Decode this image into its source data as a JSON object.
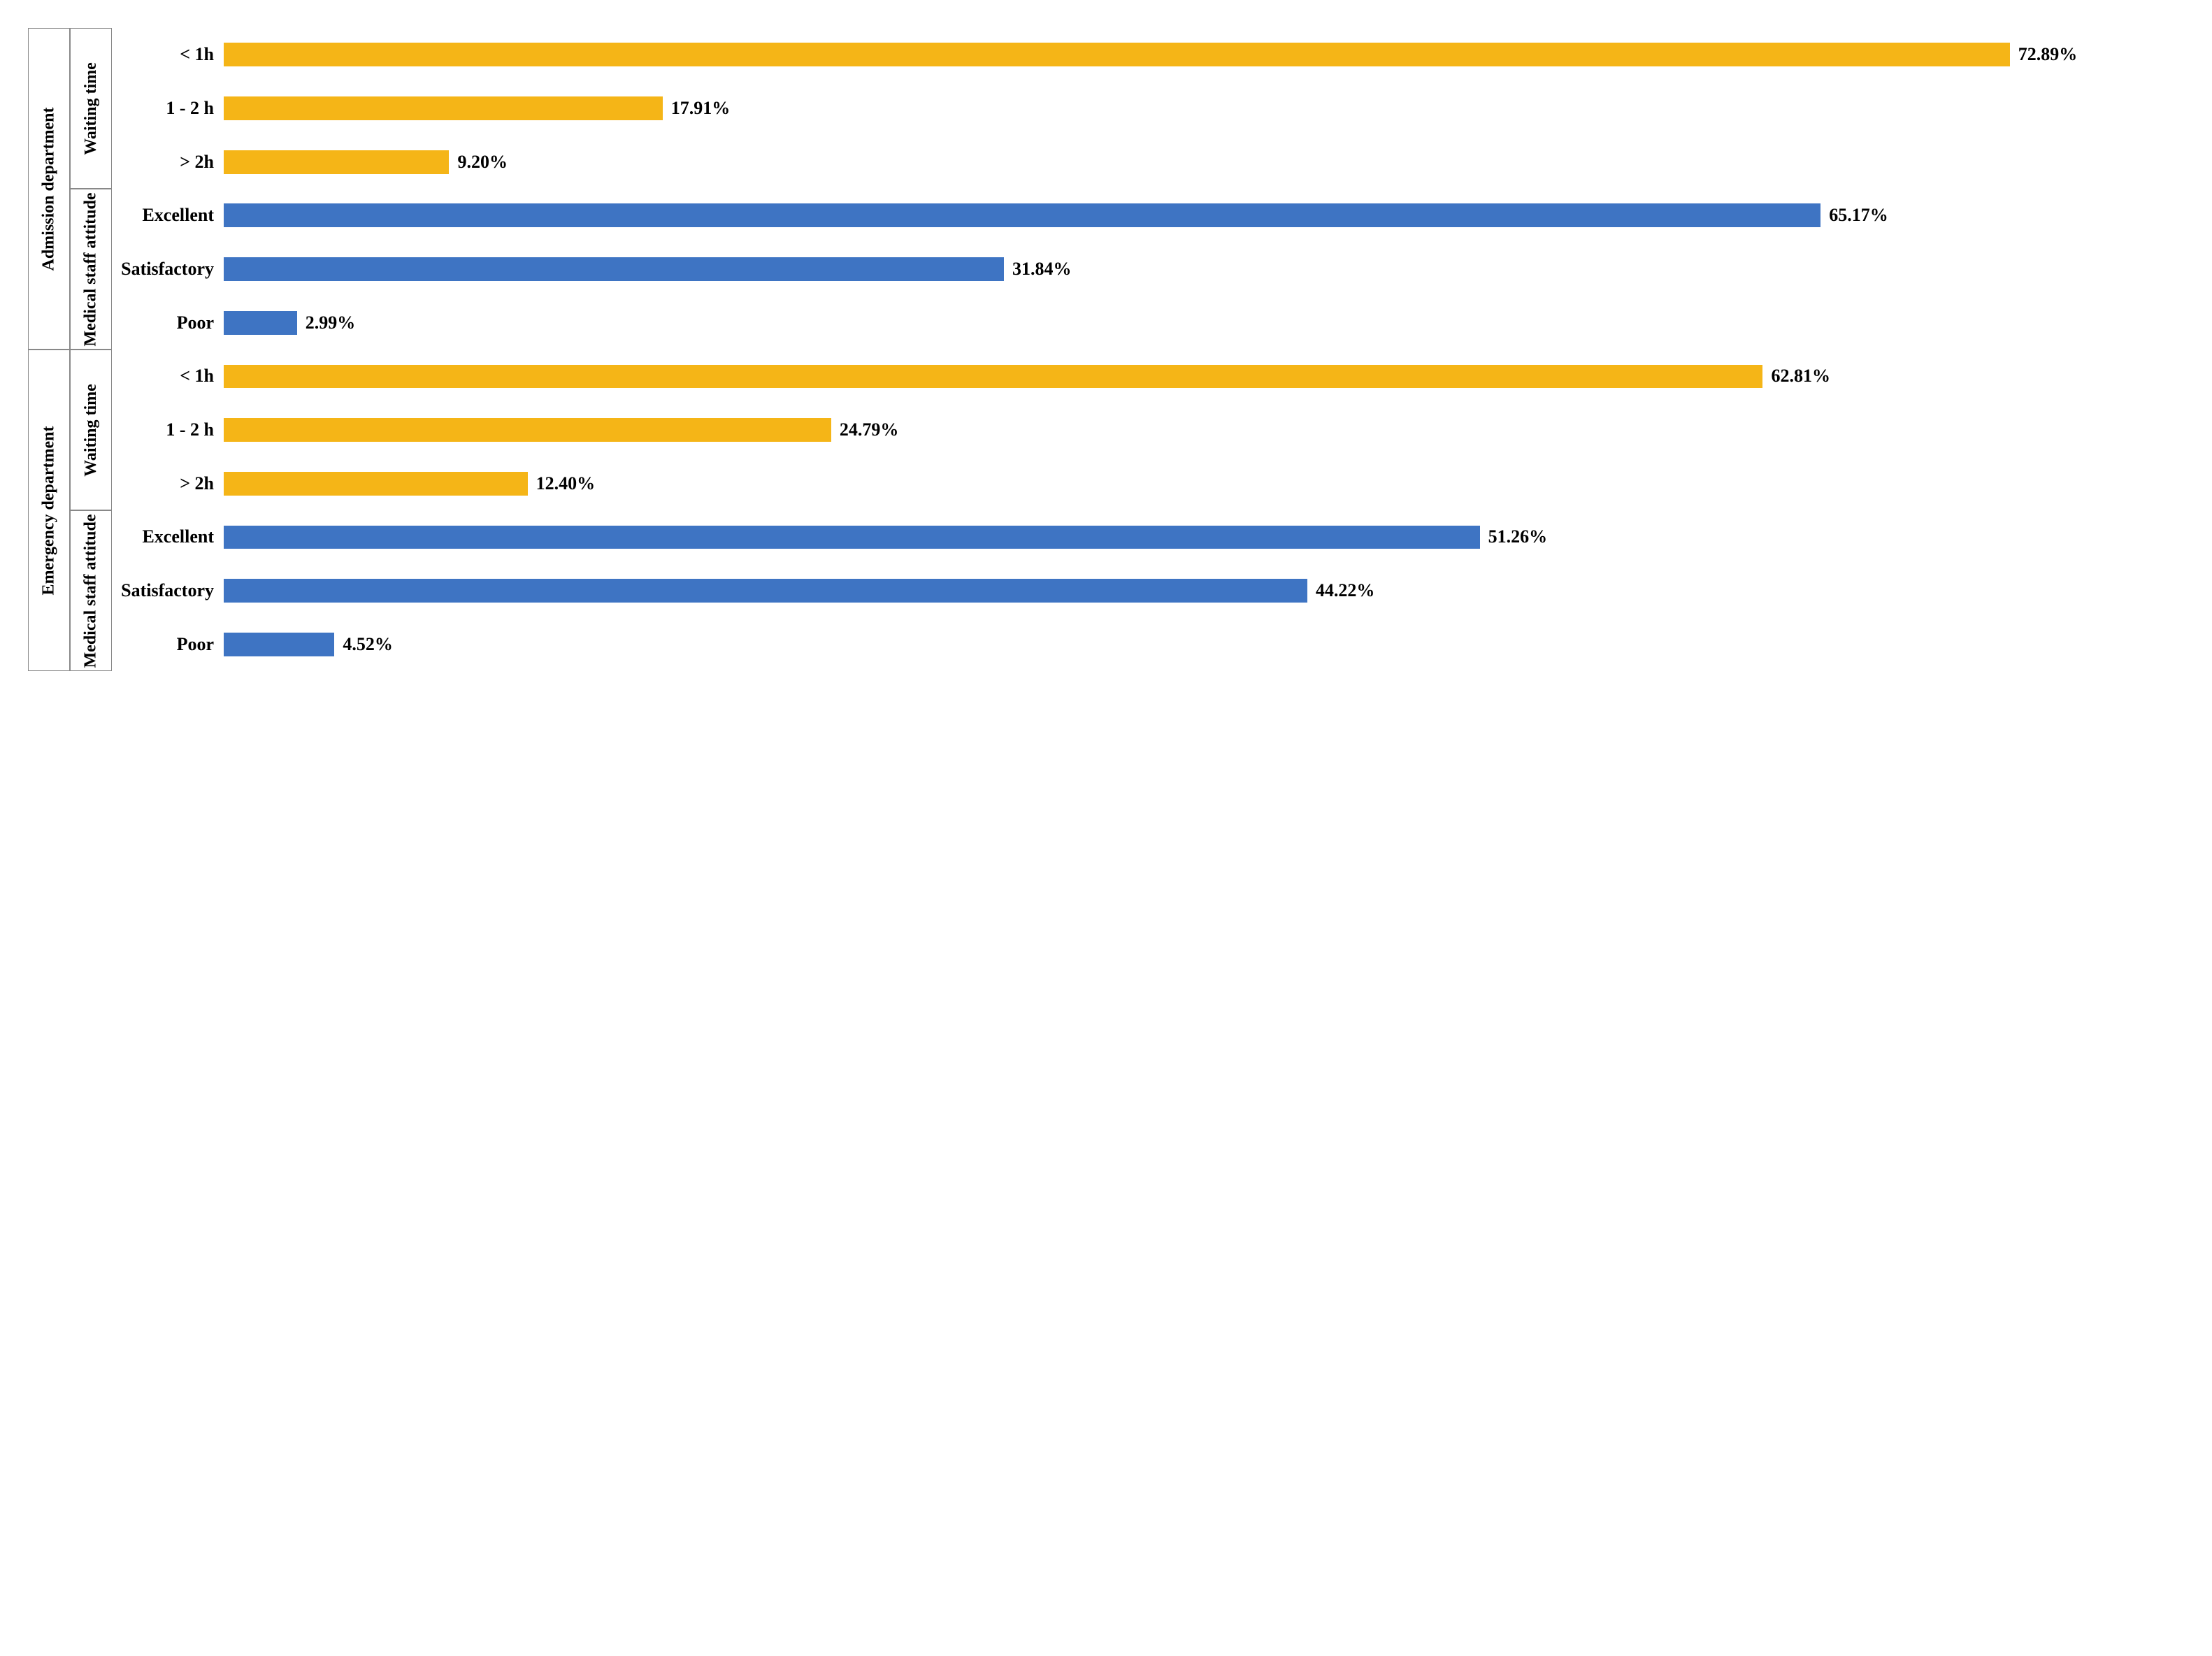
{
  "chart": {
    "type": "bar",
    "orientation": "horizontal",
    "background_color": "#ffffff",
    "axis_border_color": "#888888",
    "font_family": "Times New Roman",
    "font_weight": "bold",
    "category_label_fontsize": 26,
    "value_label_fontsize": 26,
    "rotated_label_fontsize": 24,
    "xlim": [
      0,
      80
    ],
    "bar_height_ratio": 0.44,
    "colors": {
      "waiting_time": "#f5b517",
      "medical_staff_attitude": "#3e74c3"
    },
    "departments": [
      {
        "label": "Admission department",
        "groups": [
          {
            "label": "Waiting time",
            "color": "#f5b517",
            "items": [
              {
                "label": "< 1h",
                "value": 72.89,
                "value_label": "72.89%"
              },
              {
                "label": "1 - 2 h",
                "value": 17.91,
                "value_label": "17.91%"
              },
              {
                "label": "> 2h",
                "value": 9.2,
                "value_label": "9.20%"
              }
            ]
          },
          {
            "label": "Medical staff attitude",
            "color": "#3e74c3",
            "items": [
              {
                "label": "Excellent",
                "value": 65.17,
                "value_label": "65.17%"
              },
              {
                "label": "Satisfactory",
                "value": 31.84,
                "value_label": "31.84%"
              },
              {
                "label": "Poor",
                "value": 2.99,
                "value_label": "2.99%"
              }
            ]
          }
        ]
      },
      {
        "label": "Emergency department",
        "groups": [
          {
            "label": "Waiting time",
            "color": "#f5b517",
            "items": [
              {
                "label": "< 1h",
                "value": 62.81,
                "value_label": "62.81%"
              },
              {
                "label": "1 - 2 h",
                "value": 24.79,
                "value_label": "24.79%"
              },
              {
                "label": "> 2h",
                "value": 12.4,
                "value_label": "12.40%"
              }
            ]
          },
          {
            "label": "Medical staff attitude",
            "color": "#3e74c3",
            "items": [
              {
                "label": "Excellent",
                "value": 51.26,
                "value_label": "51.26%"
              },
              {
                "label": "Satisfactory",
                "value": 44.22,
                "value_label": "44.22%"
              },
              {
                "label": "Poor",
                "value": 4.52,
                "value_label": "4.52%"
              }
            ]
          }
        ]
      }
    ]
  }
}
